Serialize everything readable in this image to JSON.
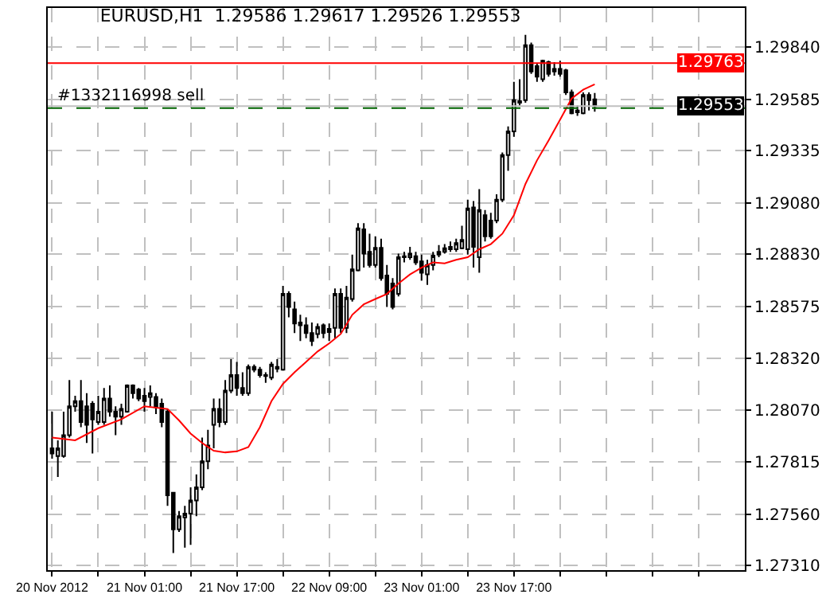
{
  "chart_data": {
    "type": "candlestick",
    "title": "EURUSD,H1  1.29586 1.29617 1.29526 1.29553",
    "xlim": [
      "2012-11-20T08:15",
      "2012-11-25T09:00"
    ],
    "xticks": [
      {
        "value": "2012-11-20T09:00",
        "label": "20 Nov 2012"
      },
      {
        "value": "2012-11-20T17:00",
        "label": null
      },
      {
        "value": "2012-11-21T01:00",
        "label": "21 Nov 01:00"
      },
      {
        "value": "2012-11-21T09:00",
        "label": null
      },
      {
        "value": "2012-11-21T17:00",
        "label": "21 Nov 17:00"
      },
      {
        "value": "2012-11-22T01:00",
        "label": null
      },
      {
        "value": "2012-11-22T09:00",
        "label": "22 Nov 09:00"
      },
      {
        "value": "2012-11-22T17:00",
        "label": null
      },
      {
        "value": "2012-11-23T01:00",
        "label": "23 Nov 01:00"
      },
      {
        "value": "2012-11-23T09:00",
        "label": null
      },
      {
        "value": "2012-11-23T17:00",
        "label": "23 Nov 17:00"
      },
      {
        "value": "2012-11-24T01:00",
        "label": null
      },
      {
        "value": "2012-11-24T09:00",
        "label": null
      },
      {
        "value": "2012-11-24T17:00",
        "label": null
      },
      {
        "value": "2012-11-25T01:00",
        "label": null
      }
    ],
    "ylim": [
      1.27287,
      1.30032
    ],
    "yticks": [
      {
        "value": 1.2731,
        "label": "1.27310"
      },
      {
        "value": 1.2756,
        "label": "1.27560"
      },
      {
        "value": 1.27815,
        "label": "1.27815"
      },
      {
        "value": 1.2807,
        "label": "1.28070"
      },
      {
        "value": 1.2832,
        "label": "1.28320"
      },
      {
        "value": 1.28575,
        "label": "1.28575"
      },
      {
        "value": 1.2883,
        "label": "1.28830"
      },
      {
        "value": 1.2908,
        "label": "1.29080"
      },
      {
        "value": 1.29335,
        "label": "1.29335"
      },
      {
        "value": 1.29585,
        "label": "1.29585"
      },
      {
        "value": 1.2984,
        "label": "1.29840"
      }
    ],
    "grid": true,
    "legend": false,
    "ref_lines": [
      {
        "axis": "y",
        "value": 1.29763,
        "label": "1.29763",
        "color": "#ff0000",
        "line_style": "solid"
      },
      {
        "axis": "y",
        "value": 1.29553,
        "label": "1.29553",
        "color": "#c0c0c0",
        "line_style": "solid"
      },
      {
        "axis": "y",
        "value": 1.29543,
        "label": "#1332116998 sell",
        "color": "#006400",
        "line_style": "dashed"
      }
    ],
    "series": [
      {
        "color": "#000000",
        "x": [
          "2012-11-20T09:00",
          "2012-11-20T10:00",
          "2012-11-20T11:00",
          "2012-11-20T12:00",
          "2012-11-20T13:00",
          "2012-11-20T14:00",
          "2012-11-20T15:00",
          "2012-11-20T16:00",
          "2012-11-20T17:00",
          "2012-11-20T18:00",
          "2012-11-20T19:00",
          "2012-11-20T20:00",
          "2012-11-20T21:00",
          "2012-11-20T22:00",
          "2012-11-20T23:00",
          "2012-11-21T00:00",
          "2012-11-21T01:00",
          "2012-11-21T02:00",
          "2012-11-21T03:00",
          "2012-11-21T04:00",
          "2012-11-21T05:00",
          "2012-11-21T06:00",
          "2012-11-21T07:00",
          "2012-11-21T08:00",
          "2012-11-21T09:00",
          "2012-11-21T10:00",
          "2012-11-21T11:00",
          "2012-11-21T12:00",
          "2012-11-21T13:00",
          "2012-11-21T14:00",
          "2012-11-21T15:00",
          "2012-11-21T16:00",
          "2012-11-21T17:00",
          "2012-11-21T18:00",
          "2012-11-21T19:00",
          "2012-11-21T20:00",
          "2012-11-21T21:00",
          "2012-11-21T22:00",
          "2012-11-21T23:00",
          "2012-11-22T00:00",
          "2012-11-22T01:00",
          "2012-11-22T02:00",
          "2012-11-22T03:00",
          "2012-11-22T04:00",
          "2012-11-22T05:00",
          "2012-11-22T06:00",
          "2012-11-22T07:00",
          "2012-11-22T08:00",
          "2012-11-22T09:00",
          "2012-11-22T10:00",
          "2012-11-22T11:00",
          "2012-11-22T12:00",
          "2012-11-22T13:00",
          "2012-11-22T14:00",
          "2012-11-22T15:00",
          "2012-11-22T16:00",
          "2012-11-22T17:00",
          "2012-11-22T18:00",
          "2012-11-22T19:00",
          "2012-11-22T20:00",
          "2012-11-22T21:00",
          "2012-11-22T22:00",
          "2012-11-22T23:00",
          "2012-11-23T00:00",
          "2012-11-23T01:00",
          "2012-11-23T02:00",
          "2012-11-23T03:00",
          "2012-11-23T04:00",
          "2012-11-23T05:00",
          "2012-11-23T06:00",
          "2012-11-23T07:00",
          "2012-11-23T08:00",
          "2012-11-23T09:00",
          "2012-11-23T10:00",
          "2012-11-23T11:00",
          "2012-11-23T12:00",
          "2012-11-23T13:00",
          "2012-11-23T14:00",
          "2012-11-23T15:00",
          "2012-11-23T16:00",
          "2012-11-23T17:00",
          "2012-11-23T18:00",
          "2012-11-23T19:00",
          "2012-11-23T20:00",
          "2012-11-23T21:00",
          "2012-11-23T22:00",
          "2012-11-23T23:00",
          "2012-11-24T00:00",
          "2012-11-24T01:00",
          "2012-11-24T02:00",
          "2012-11-24T03:00",
          "2012-11-24T04:00",
          "2012-11-24T05:00",
          "2012-11-24T06:00",
          "2012-11-24T07:00"
        ],
        "ohlc": [
          [
            1.27882,
            1.28061,
            1.27831,
            1.27857
          ],
          [
            1.27844,
            1.27921,
            1.27742,
            1.27882
          ],
          [
            1.27844,
            1.28061,
            1.27836,
            1.27946
          ],
          [
            1.27946,
            1.28215,
            1.27934,
            1.28087
          ],
          [
            1.28087,
            1.28138,
            1.28061,
            1.28112
          ],
          [
            1.28112,
            1.28215,
            1.27985,
            1.2801
          ],
          [
            1.28087,
            1.28151,
            1.27908,
            1.27997
          ],
          [
            1.281,
            1.28112,
            1.27857,
            1.28023
          ],
          [
            1.2801,
            1.28138,
            1.27997,
            1.28061
          ],
          [
            1.2801,
            1.28176,
            1.27997,
            1.28125
          ],
          [
            1.28125,
            1.28189,
            1.28036,
            1.28061
          ],
          [
            1.28061,
            1.28087,
            1.27946,
            1.28036
          ],
          [
            1.28036,
            1.281,
            1.27997,
            1.28074
          ],
          [
            1.28061,
            1.28194,
            1.28056,
            1.28189
          ],
          [
            1.28189,
            1.28194,
            1.28125,
            1.28151
          ],
          [
            1.28169,
            1.28176,
            1.28112,
            1.28125
          ],
          [
            1.28138,
            1.28176,
            1.28061,
            1.28112
          ],
          [
            1.28133,
            1.28189,
            1.28087,
            1.28151
          ],
          [
            1.28133,
            1.28151,
            1.28049,
            1.28082
          ],
          [
            1.281,
            1.28125,
            1.27985,
            1.2801
          ],
          [
            1.28061,
            1.28074,
            1.27601,
            1.27652
          ],
          [
            1.27665,
            1.27665,
            1.27371,
            1.27486
          ],
          [
            1.27486,
            1.27576,
            1.27474,
            1.2755
          ],
          [
            1.27545,
            1.27601,
            1.27397,
            1.27563
          ],
          [
            1.27563,
            1.27691,
            1.2741,
            1.27627
          ],
          [
            1.27627,
            1.27755,
            1.2755,
            1.27691
          ],
          [
            1.27691,
            1.27934,
            1.27678,
            1.27819
          ],
          [
            1.27819,
            1.27972,
            1.2778,
            1.27895
          ],
          [
            1.27997,
            1.28125,
            1.27882,
            1.28074
          ],
          [
            1.28074,
            1.28125,
            1.27985,
            1.2801
          ],
          [
            1.2801,
            1.28215,
            1.27997,
            1.28164
          ],
          [
            1.28164,
            1.28317,
            1.28151,
            1.2824
          ],
          [
            1.2824,
            1.28304,
            1.28138,
            1.28176
          ],
          [
            1.28176,
            1.28253,
            1.28138,
            1.28151
          ],
          [
            1.28151,
            1.28291,
            1.28138,
            1.28279
          ],
          [
            1.28266,
            1.28291,
            1.28253,
            1.28279
          ],
          [
            1.28266,
            1.28279,
            1.28227,
            1.2824
          ],
          [
            1.28235,
            1.28253,
            1.28202,
            1.2824
          ],
          [
            1.28227,
            1.28304,
            1.28215,
            1.28291
          ],
          [
            1.28271,
            1.28317,
            1.28253,
            1.28279
          ],
          [
            1.28266,
            1.28675,
            1.28261,
            1.28636
          ],
          [
            1.28636,
            1.28649,
            1.28521,
            1.28572
          ],
          [
            1.2856,
            1.28598,
            1.28445,
            1.28491
          ],
          [
            1.28483,
            1.28534,
            1.28406,
            1.28496
          ],
          [
            1.28483,
            1.28521,
            1.28419,
            1.28445
          ],
          [
            1.28445,
            1.28496,
            1.28381,
            1.28406
          ],
          [
            1.2844,
            1.28491,
            1.28419,
            1.28475
          ],
          [
            1.28483,
            1.28491,
            1.28419,
            1.28445
          ],
          [
            1.2845,
            1.28491,
            1.28406,
            1.28465
          ],
          [
            1.2847,
            1.28662,
            1.28419,
            1.28636
          ],
          [
            1.28636,
            1.28662,
            1.28445,
            1.2847
          ],
          [
            1.2847,
            1.28675,
            1.28445,
            1.28618
          ],
          [
            1.28611,
            1.28828,
            1.28598,
            1.28756
          ],
          [
            1.28751,
            1.28981,
            1.28746,
            1.28956
          ],
          [
            1.28951,
            1.28981,
            1.28764,
            1.28833
          ],
          [
            1.28841,
            1.2893,
            1.28764,
            1.28777
          ],
          [
            1.28777,
            1.28917,
            1.28764,
            1.28861
          ],
          [
            1.28861,
            1.28905,
            1.287,
            1.28713
          ],
          [
            1.28726,
            1.28777,
            1.28572,
            1.28636
          ],
          [
            1.28687,
            1.28713,
            1.2856,
            1.28572
          ],
          [
            1.28636,
            1.28833,
            1.28624,
            1.28815
          ],
          [
            1.28815,
            1.28841,
            1.2879,
            1.2882
          ],
          [
            1.28815,
            1.28866,
            1.28802,
            1.28833
          ],
          [
            1.2882,
            1.28841,
            1.28777,
            1.2879
          ],
          [
            1.28795,
            1.28828,
            1.287,
            1.28739
          ],
          [
            1.28731,
            1.28802,
            1.2868,
            1.28777
          ],
          [
            1.28777,
            1.28841,
            1.28751,
            1.28823
          ],
          [
            1.28828,
            1.28874,
            1.28815,
            1.28841
          ],
          [
            1.28841,
            1.28879,
            1.28833,
            1.28859
          ],
          [
            1.28854,
            1.28892,
            1.28841,
            1.28866
          ],
          [
            1.28854,
            1.28905,
            1.28841,
            1.28884
          ],
          [
            1.28859,
            1.28969,
            1.28854,
            1.289
          ],
          [
            1.28854,
            1.29096,
            1.28828,
            1.29053
          ],
          [
            1.29058,
            1.29089,
            1.28764,
            1.28866
          ],
          [
            1.28815,
            1.29147,
            1.28739,
            1.29045
          ],
          [
            1.2902,
            1.29045,
            1.28892,
            1.28917
          ],
          [
            1.28994,
            1.29032,
            1.28905,
            1.28917
          ],
          [
            1.28994,
            1.29122,
            1.28981,
            1.29096
          ],
          [
            1.29096,
            1.29326,
            1.29084,
            1.29314
          ],
          [
            1.29314,
            1.29454,
            1.29237,
            1.29429
          ],
          [
            1.29429,
            1.29671,
            1.29403,
            1.29582
          ],
          [
            1.29569,
            1.29684,
            1.29556,
            1.29577
          ],
          [
            1.29582,
            1.29901,
            1.29569,
            1.2985
          ],
          [
            1.2985,
            1.29863,
            1.2971,
            1.29722
          ],
          [
            1.29748,
            1.29761,
            1.29671,
            1.29697
          ],
          [
            1.29684,
            1.29779,
            1.29671,
            1.29774
          ],
          [
            1.29768,
            1.29774,
            1.29697,
            1.2971
          ],
          [
            1.29722,
            1.29768,
            1.29702,
            1.29735
          ],
          [
            1.29735,
            1.29774,
            1.29697,
            1.2971
          ],
          [
            1.29728,
            1.29735,
            1.29607,
            1.2962
          ],
          [
            1.2962,
            1.29633,
            1.29513,
            1.29518
          ],
          [
            1.29523,
            1.29556,
            1.29505,
            1.29531
          ],
          [
            1.29518,
            1.2962,
            1.29513,
            1.29607
          ],
          [
            1.29607,
            1.2962,
            1.29531,
            1.29582
          ],
          [
            1.29586,
            1.29617,
            1.29526,
            1.29553
          ]
        ]
      },
      {
        "type": "line",
        "color": "#ff0000",
        "x": [
          "2012-11-20T09:00",
          "2012-11-20T13:00",
          "2012-11-20T17:00",
          "2012-11-20T21:00",
          "2012-11-21T01:00",
          "2012-11-21T05:00",
          "2012-11-21T07:00",
          "2012-11-21T09:00",
          "2012-11-21T11:00",
          "2012-11-21T13:00",
          "2012-11-21T15:00",
          "2012-11-21T17:00",
          "2012-11-21T19:00",
          "2012-11-21T21:00",
          "2012-11-21T23:00",
          "2012-11-22T01:00",
          "2012-11-22T03:00",
          "2012-11-22T05:00",
          "2012-11-22T07:00",
          "2012-11-22T09:00",
          "2012-11-22T11:00",
          "2012-11-22T13:00",
          "2012-11-22T15:00",
          "2012-11-22T17:00",
          "2012-11-22T19:00",
          "2012-11-22T21:00",
          "2012-11-22T23:00",
          "2012-11-23T01:00",
          "2012-11-23T03:00",
          "2012-11-23T05:00",
          "2012-11-23T07:00",
          "2012-11-23T09:00",
          "2012-11-23T11:00",
          "2012-11-23T13:00",
          "2012-11-23T15:00",
          "2012-11-23T17:00",
          "2012-11-23T19:00",
          "2012-11-23T21:00",
          "2012-11-23T23:00",
          "2012-11-24T01:00",
          "2012-11-24T03:00",
          "2012-11-24T05:00",
          "2012-11-24T07:00"
        ],
        "values": [
          1.27934,
          1.27921,
          1.2798,
          1.28023,
          1.28087,
          1.28074,
          1.28018,
          1.27954,
          1.27908,
          1.2787,
          1.27862,
          1.27867,
          1.27888,
          1.27985,
          1.28112,
          1.28197,
          1.28253,
          1.28304,
          1.28355,
          1.28394,
          1.2844,
          1.28534,
          1.28585,
          1.28611,
          1.28636,
          1.28687,
          1.28731,
          1.28764,
          1.2879,
          1.28785,
          1.28802,
          1.28815,
          1.28854,
          1.28879,
          1.2893,
          1.2902,
          1.29173,
          1.29288,
          1.29385,
          1.29487,
          1.2959,
          1.29633,
          1.29659
        ]
      }
    ]
  }
}
